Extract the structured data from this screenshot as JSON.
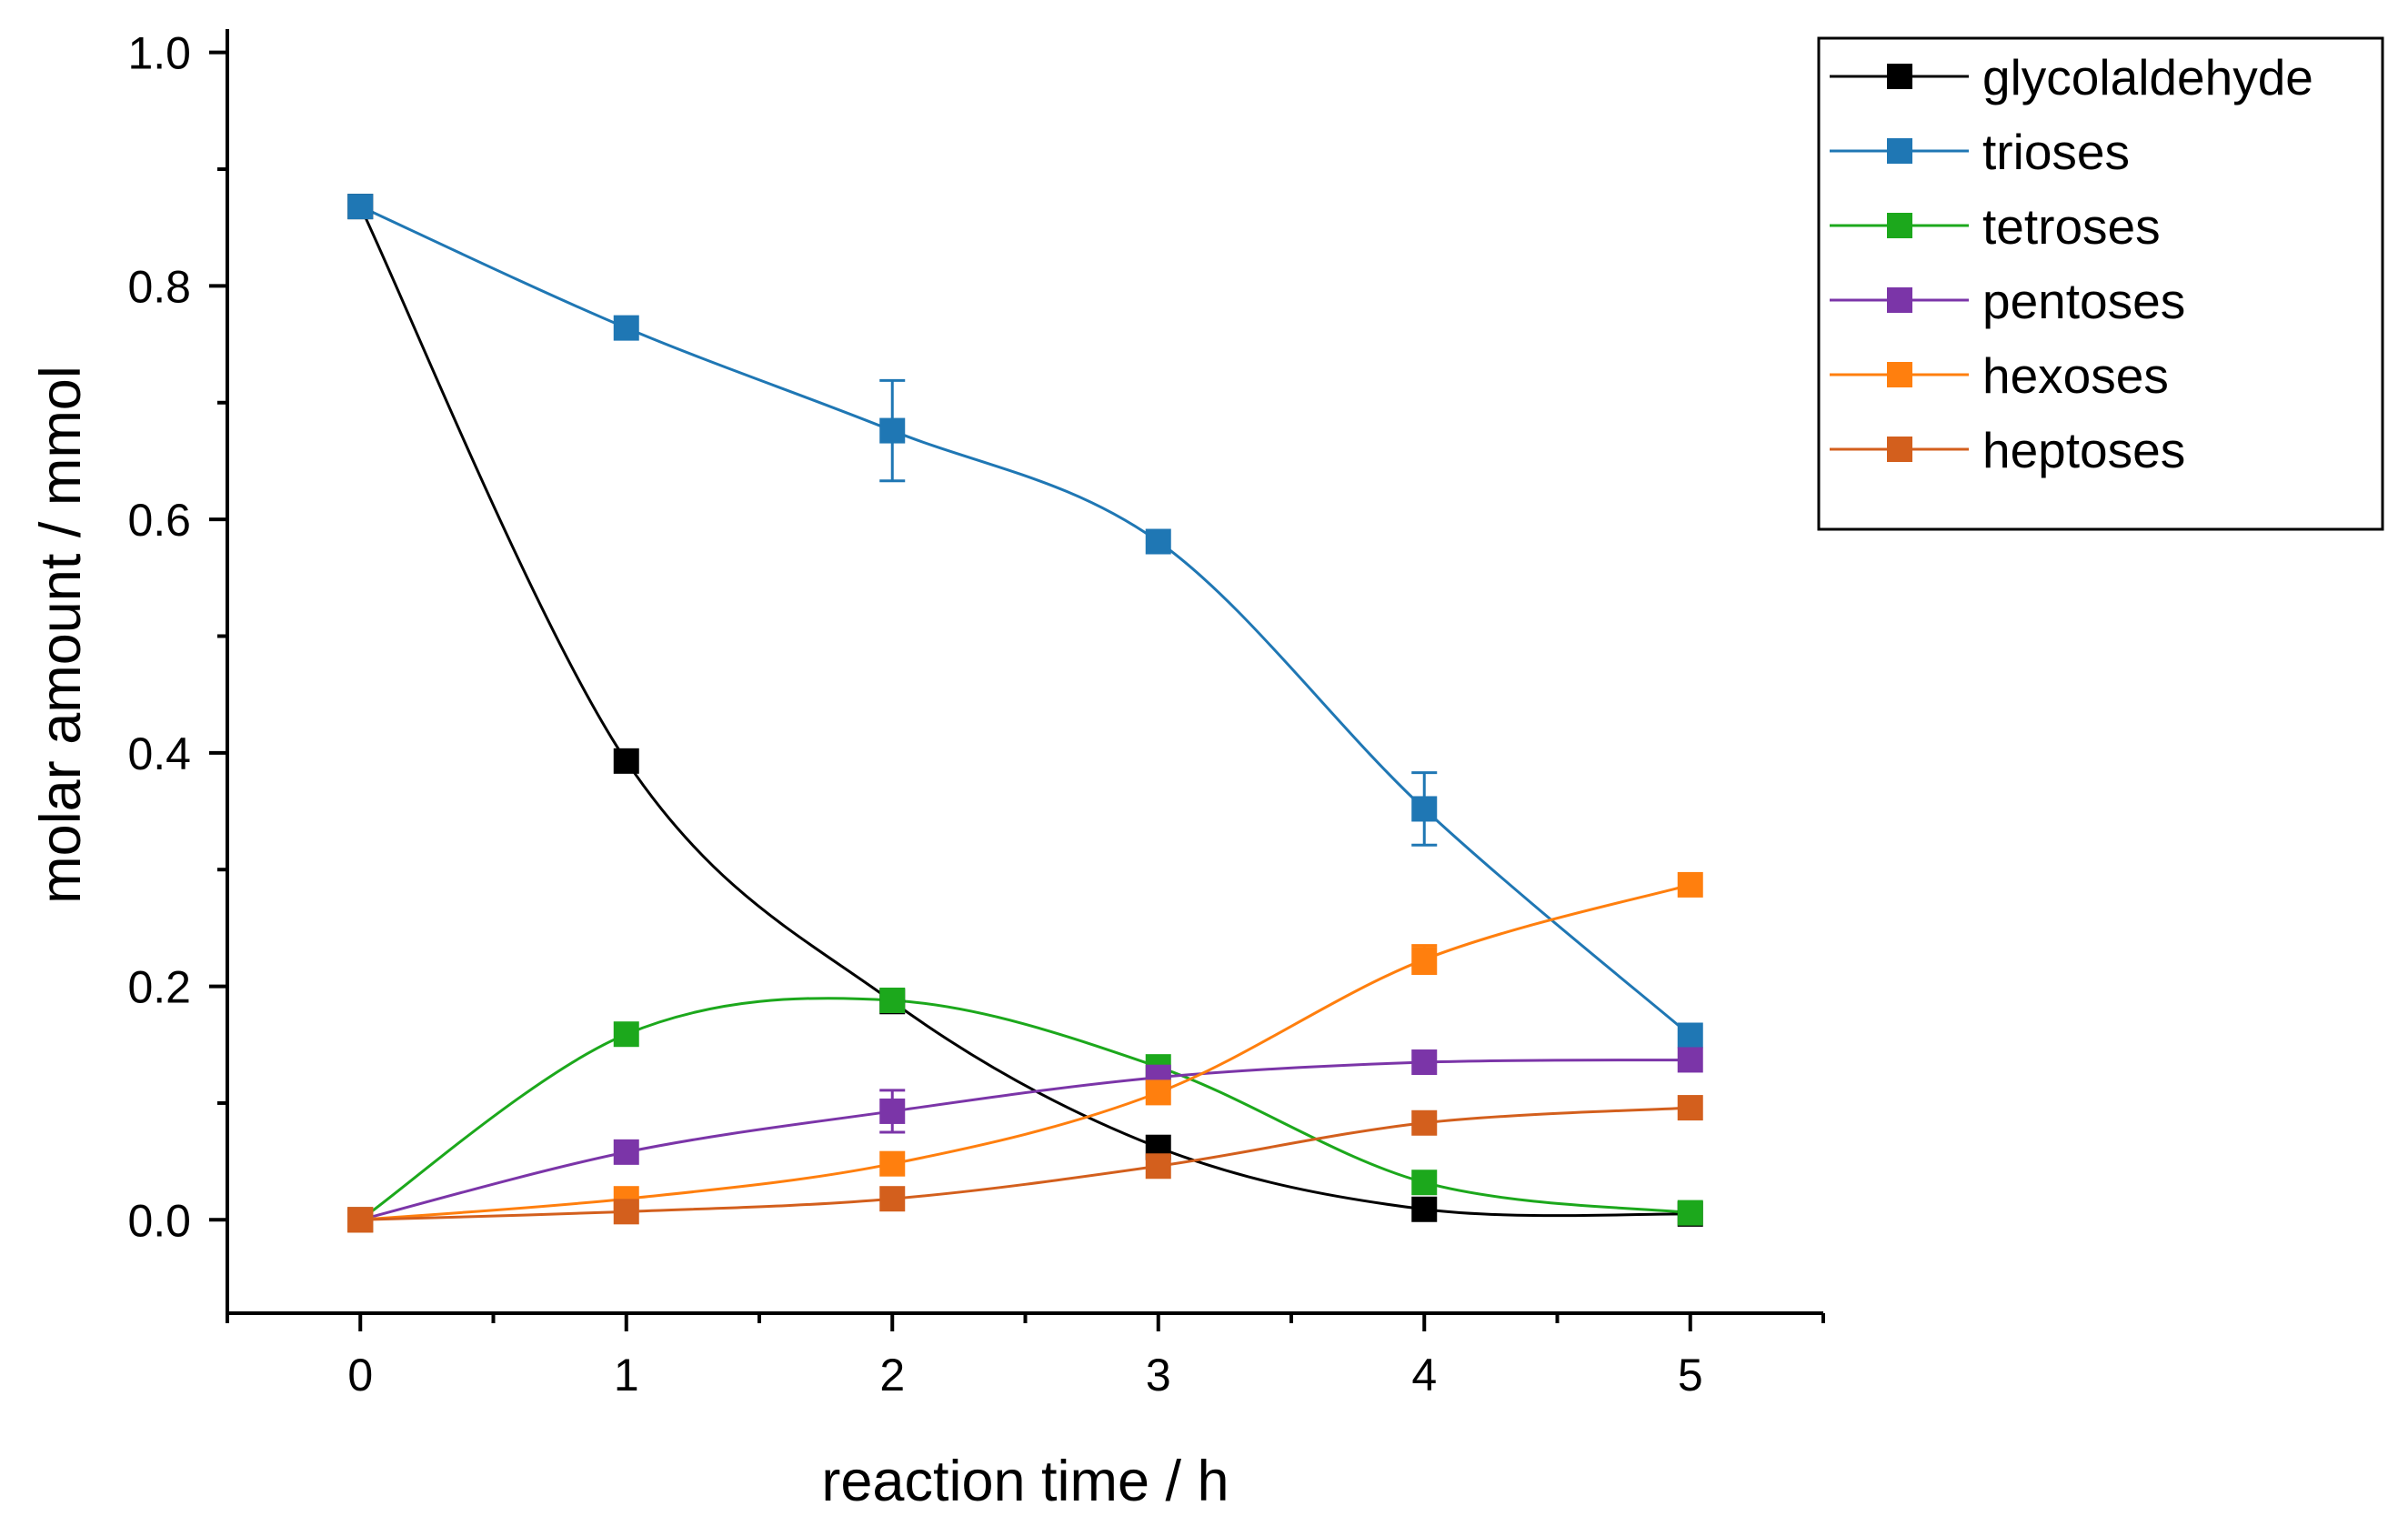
{
  "chart_data": {
    "type": "line",
    "xlabel": "reaction time / h",
    "ylabel": "molar amount / mmol",
    "xlim": [
      -0.5,
      5.5
    ],
    "ylim": [
      -0.08,
      1.02
    ],
    "x_ticks": [
      0,
      1,
      2,
      3,
      4,
      5
    ],
    "x_tick_labels": [
      "0",
      "1",
      "2",
      "3",
      "4",
      "5"
    ],
    "y_ticks": [
      0.0,
      0.2,
      0.4,
      0.6,
      0.8,
      1.0
    ],
    "y_tick_labels": [
      "0.0",
      "0.2",
      "0.4",
      "0.6",
      "0.8",
      "1.0"
    ],
    "grid": false,
    "legend_position": "top-right",
    "marker": "square",
    "line_style": "smoothed spline",
    "x": [
      0,
      1,
      2,
      3,
      4,
      5
    ],
    "series": [
      {
        "name": "glycolaldehyde",
        "color": "#000000",
        "values": [
          0.868,
          0.393,
          0.187,
          0.062,
          0.009,
          0.005
        ],
        "errors": [
          0,
          0,
          0,
          0,
          0,
          0
        ]
      },
      {
        "name": "trioses",
        "color": "#1f77b4",
        "values": [
          0.868,
          0.764,
          0.676,
          0.581,
          0.352,
          0.158
        ],
        "errors": [
          0,
          0,
          0.043,
          0,
          0.031,
          0
        ]
      },
      {
        "name": "tetroses",
        "color": "#1ca81c",
        "values": [
          0.0,
          0.159,
          0.188,
          0.131,
          0.032,
          0.006
        ],
        "errors": [
          0,
          0,
          0,
          0,
          0,
          0
        ]
      },
      {
        "name": "pentoses",
        "color": "#7b35a8",
        "values": [
          0.0,
          0.058,
          0.093,
          0.122,
          0.135,
          0.137
        ],
        "errors": [
          0,
          0,
          0.018,
          0,
          0,
          0
        ]
      },
      {
        "name": "hexoses",
        "color": "#ff7f0e",
        "values": [
          0.0,
          0.018,
          0.048,
          0.109,
          0.223,
          0.287
        ],
        "errors": [
          0,
          0,
          0,
          0,
          0.012,
          0
        ]
      },
      {
        "name": "heptoses",
        "color": "#d35f1d",
        "values": [
          0.0,
          0.007,
          0.018,
          0.046,
          0.083,
          0.096
        ],
        "errors": [
          0,
          0,
          0,
          0,
          0,
          0
        ]
      }
    ]
  }
}
